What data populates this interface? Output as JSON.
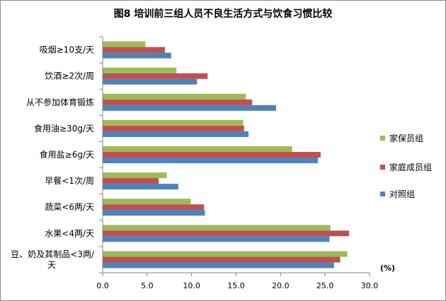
{
  "chart_data": {
    "type": "bar",
    "orientation": "horizontal",
    "title": "图8  培训前三组人员不良生活方式与饮食习惯比较",
    "unit_label": "(%)",
    "categories": [
      "吸烟≥10支/天",
      "饮酒≥2次/周",
      "从不参加体育锻炼",
      "食用油≥30g/天",
      "食用盐≥6g/天",
      "早餐<1次/周",
      "蔬菜<6两/天",
      "水果<4两/天",
      "豆、奶及其制品<3两/天"
    ],
    "category_lines": [
      [
        "吸烟≥10支/天"
      ],
      [
        "饮酒≥2次/周"
      ],
      [
        "从不参加体育锻炼"
      ],
      [
        "食用油≥30g/天"
      ],
      [
        "食用盐≥6g/天"
      ],
      [
        "早餐<1次/周"
      ],
      [
        "蔬菜<6两/天"
      ],
      [
        "水果<4两/天"
      ],
      [
        "豆、奶及其制品<3两/",
        "天"
      ]
    ],
    "series": [
      {
        "name": "家保员组",
        "color": "#9bbb59",
        "values": [
          4.8,
          8.3,
          16.1,
          15.8,
          21.3,
          7.2,
          9.9,
          25.6,
          27.5
        ]
      },
      {
        "name": "家庭成员组",
        "color": "#c0504d",
        "values": [
          7.0,
          11.8,
          16.8,
          15.9,
          24.5,
          6.3,
          11.4,
          27.7,
          26.7
        ]
      },
      {
        "name": "对照组",
        "color": "#4f81bd",
        "values": [
          7.7,
          10.6,
          19.5,
          16.4,
          24.2,
          8.5,
          11.5,
          25.5,
          26.0
        ]
      }
    ],
    "xlim": [
      0,
      30
    ],
    "xticks": [
      "0.0",
      "5.0",
      "10.0",
      "15.0",
      "20.0",
      "25.0",
      "30.0"
    ],
    "grid": false,
    "legend_position": "right"
  }
}
